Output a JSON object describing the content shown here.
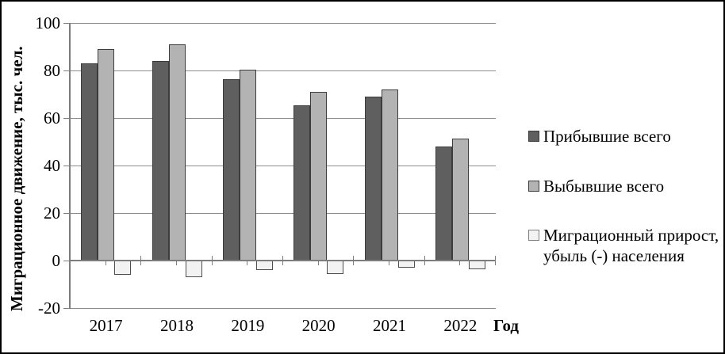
{
  "chart_data": {
    "type": "bar",
    "title": "",
    "categories": [
      "2017",
      "2018",
      "2019",
      "2020",
      "2021",
      "2022"
    ],
    "series": [
      {
        "name": "Прибывшие всего",
        "legend_lines": [
          "Прибывшие всего"
        ],
        "color": "#5f5f5f",
        "border_color": "#3c3c3c",
        "values": [
          83,
          84,
          76.5,
          65.5,
          69,
          48
        ]
      },
      {
        "name": "Выбывшие всего",
        "legend_lines": [
          "Выбывшие всего"
        ],
        "color": "#b3b3b3",
        "border_color": "#3c3c3c",
        "values": [
          89,
          91,
          80.5,
          71,
          72,
          51.5
        ]
      },
      {
        "name": "Миграционный прирост, убыль (-) населения",
        "legend_lines": [
          "Миграционный прирост,",
          "убыль (-) населения"
        ],
        "color": "#f2f2f2",
        "border_color": "#4d4d4d",
        "values": [
          -6,
          -7,
          -4,
          -5.5,
          -3,
          -3.5
        ]
      }
    ],
    "xlabel": "Год",
    "ylabel": "Миграционное движение, тыс. чел.",
    "ylim": [
      -20,
      100
    ],
    "y_ticks": [
      100,
      80,
      60,
      40,
      20,
      0,
      -20
    ],
    "grid": true,
    "legend_position": "right"
  },
  "colors": {
    "gridline": "#8c8c8c",
    "axis": "#7d7d7d",
    "background": "#ffffff",
    "frame": "#000000",
    "text": "#000000"
  }
}
